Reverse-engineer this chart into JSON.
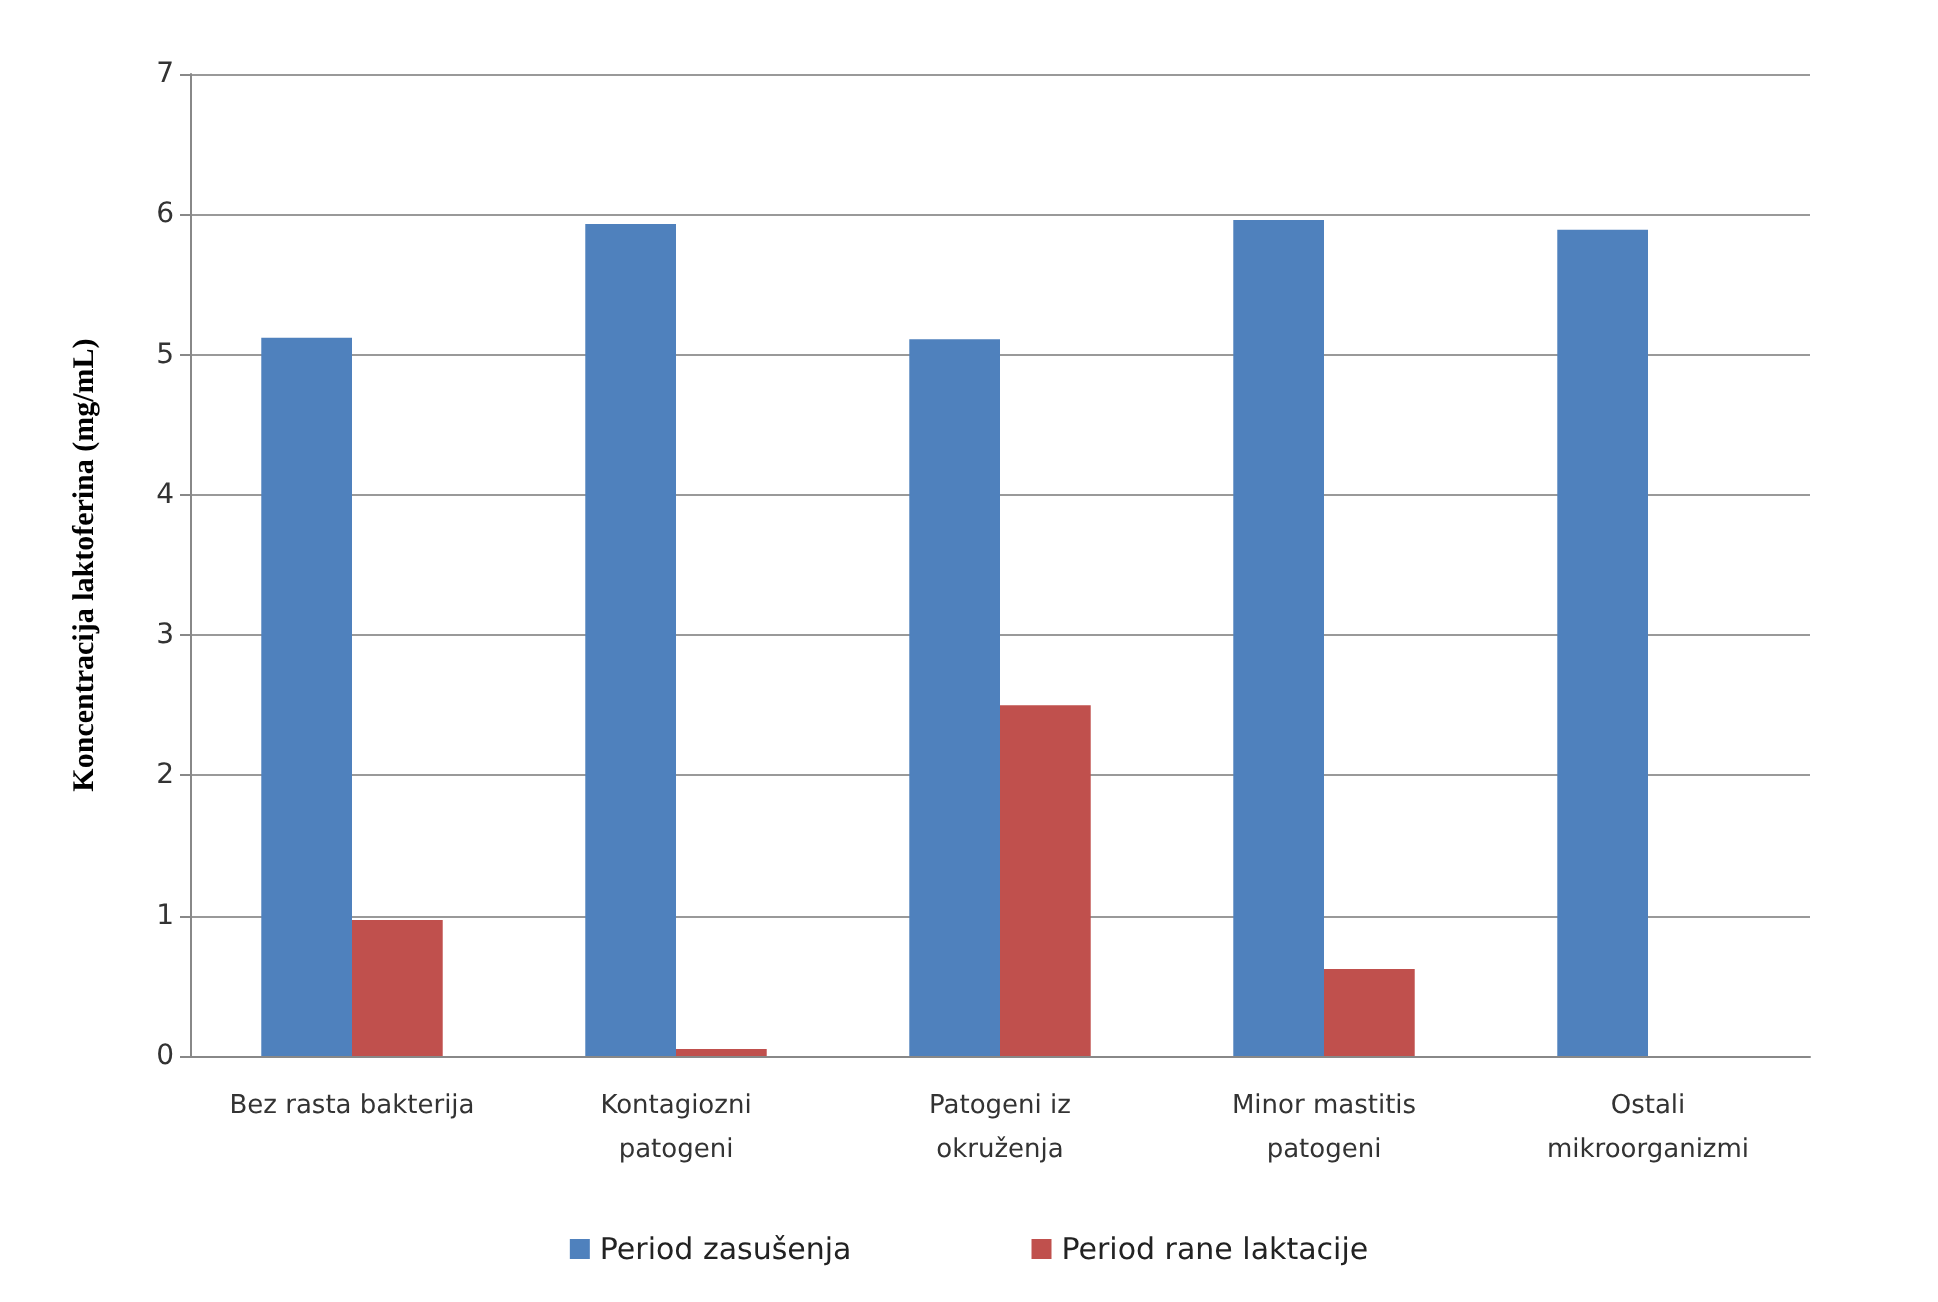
{
  "chart_data": {
    "type": "bar",
    "ylabel": "Koncentracija laktoferina (mg/mL)",
    "categories": [
      "Bez rasta bakterija",
      "Kontagiozni\npatogeni",
      "Patogeni iz\nokruženja",
      "Minor mastitis\npatogeni",
      "Ostali\nmikroorganizmi"
    ],
    "series": [
      {
        "name": "Period zasušenja",
        "color": "#4f81bd",
        "values": [
          5.12,
          5.93,
          5.11,
          5.96,
          5.89
        ]
      },
      {
        "name": "Period rane laktacije",
        "color": "#c0504d",
        "values": [
          0.97,
          0.05,
          2.5,
          0.62,
          null
        ]
      }
    ],
    "ylim": [
      0,
      7
    ],
    "yticks": [
      0,
      1,
      2,
      3,
      4,
      5,
      6,
      7
    ],
    "grid": "y",
    "legend": "bottom"
  }
}
